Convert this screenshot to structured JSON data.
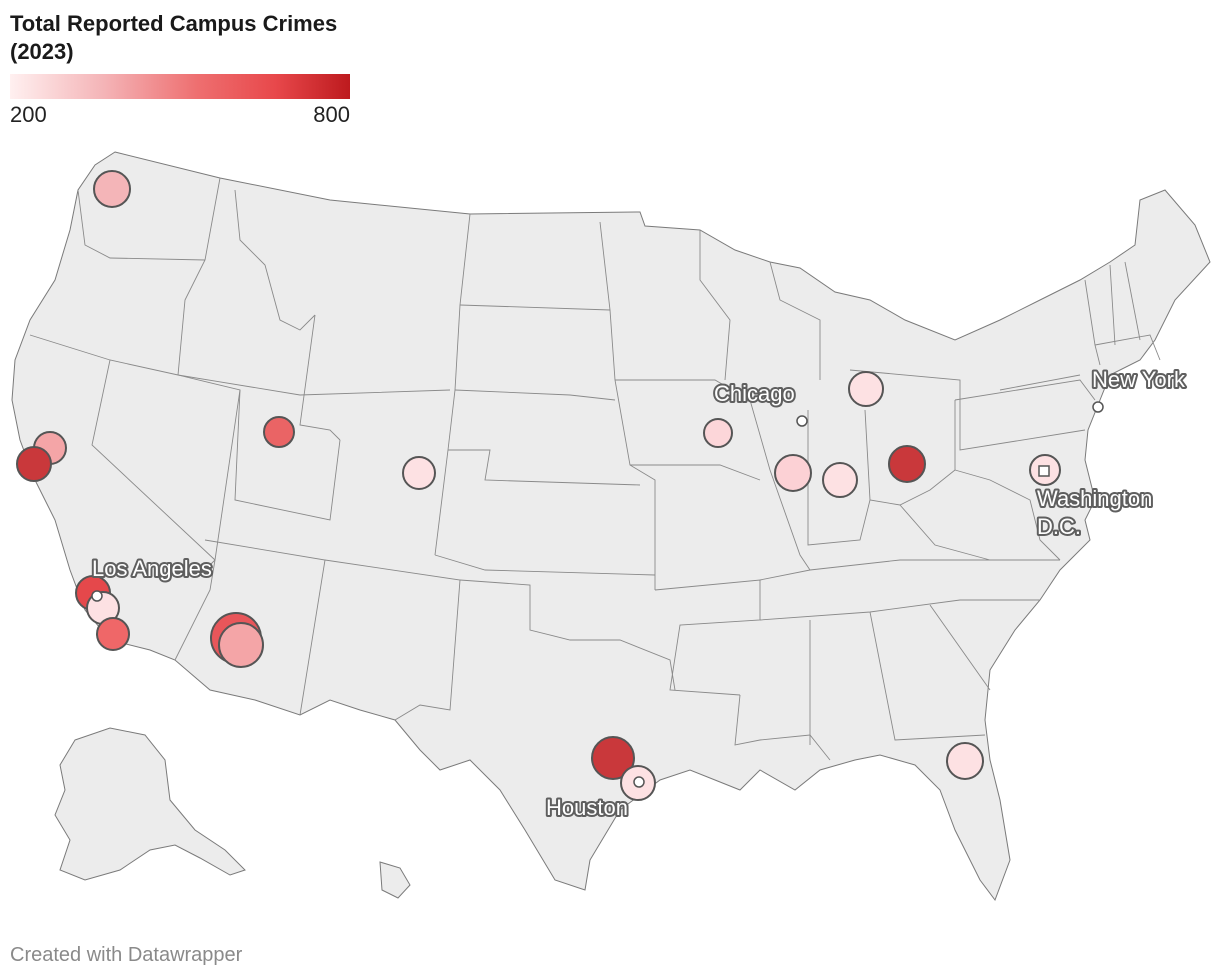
{
  "legend": {
    "title": "Total Reported Campus Crimes (2023)",
    "min_label": "200",
    "max_label": "800",
    "color_low": "#fff0f0",
    "color_high": "#bd1a1e"
  },
  "cities": [
    {
      "name": "Chicago"
    },
    {
      "name": "New York"
    },
    {
      "name": "Washington D.C."
    },
    {
      "name": "Los Angeles"
    },
    {
      "name": "Houston"
    }
  ],
  "colors": {
    "land": "#ececec",
    "border": "#7a7a7a",
    "marker_stroke": "#555555"
  },
  "credit": "Created with Datawrapper"
}
